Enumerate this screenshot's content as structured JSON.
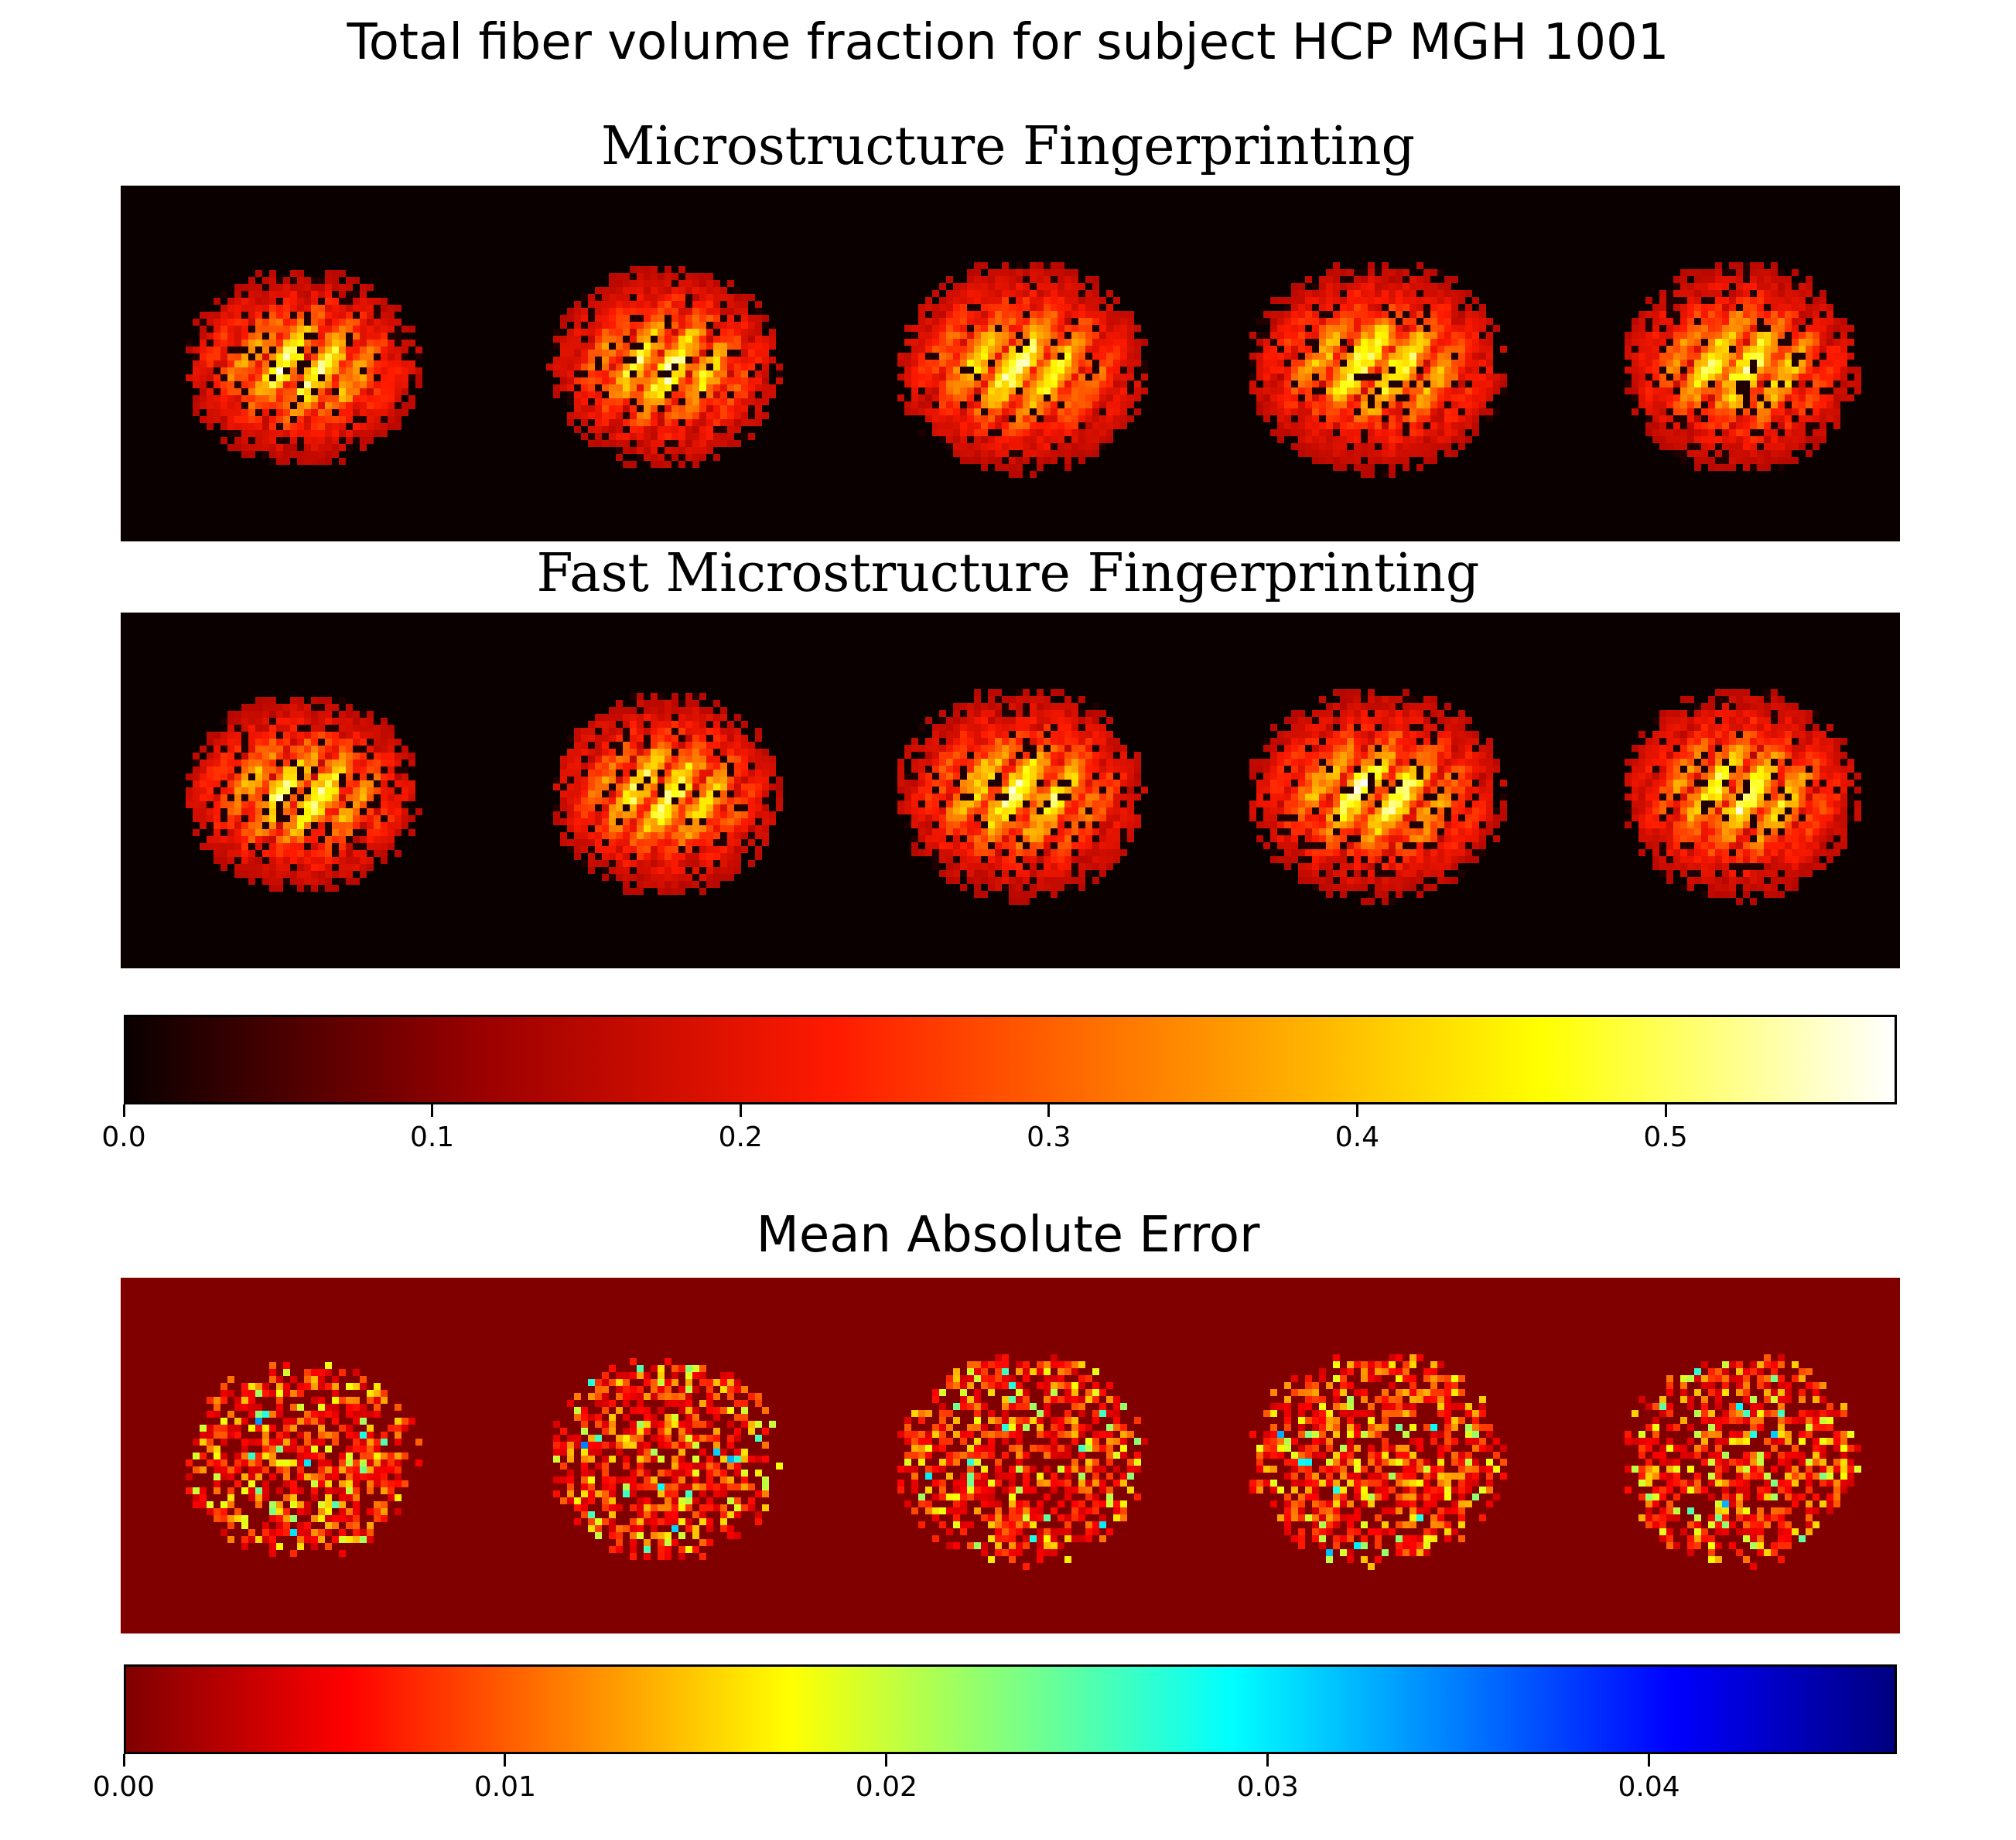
{
  "figure": {
    "title": "Total fiber volume fraction for subject HCP MGH 1001"
  },
  "chart_data": [
    {
      "type": "heatmap",
      "title": "Microstructure Fingerprinting",
      "description_slices": 5,
      "colormap": "hot",
      "background_color": "#0a0000",
      "vmin": 0.0,
      "vmax": 0.575
    },
    {
      "type": "heatmap",
      "title": "Fast Microstructure Fingerprinting",
      "description_slices": 5,
      "colormap": "hot",
      "background_color": "#0a0000",
      "vmin": 0.0,
      "vmax": 0.575
    },
    {
      "type": "colorbar",
      "colormap": "hot",
      "range": [
        0.0,
        0.575
      ],
      "ticks": [
        0.0,
        0.1,
        0.2,
        0.3,
        0.4,
        0.5
      ],
      "tick_labels": [
        "0.0",
        "0.1",
        "0.2",
        "0.3",
        "0.4",
        "0.5"
      ]
    },
    {
      "type": "heatmap",
      "title": "Mean Absolute Error",
      "description_slices": 5,
      "colormap": "jet_r",
      "background_color": "#800000",
      "vmin": 0.0,
      "vmax": 0.0465
    },
    {
      "type": "colorbar",
      "colormap": "jet_r",
      "range": [
        0.0,
        0.0465
      ],
      "ticks": [
        0.0,
        0.01,
        0.02,
        0.03,
        0.04
      ],
      "tick_labels": [
        "0.00",
        "0.01",
        "0.02",
        "0.03",
        "0.04"
      ]
    }
  ],
  "colors": {
    "hot_stops": [
      "#0a0000",
      "#9a0000",
      "#ff1a00",
      "#ff8c00",
      "#ffff00",
      "#ffffff"
    ],
    "jet_r_stops": [
      "#800000",
      "#ff0000",
      "#ff8000",
      "#ffff00",
      "#80ff80",
      "#00ffff",
      "#0080ff",
      "#0000ff",
      "#000080"
    ]
  }
}
